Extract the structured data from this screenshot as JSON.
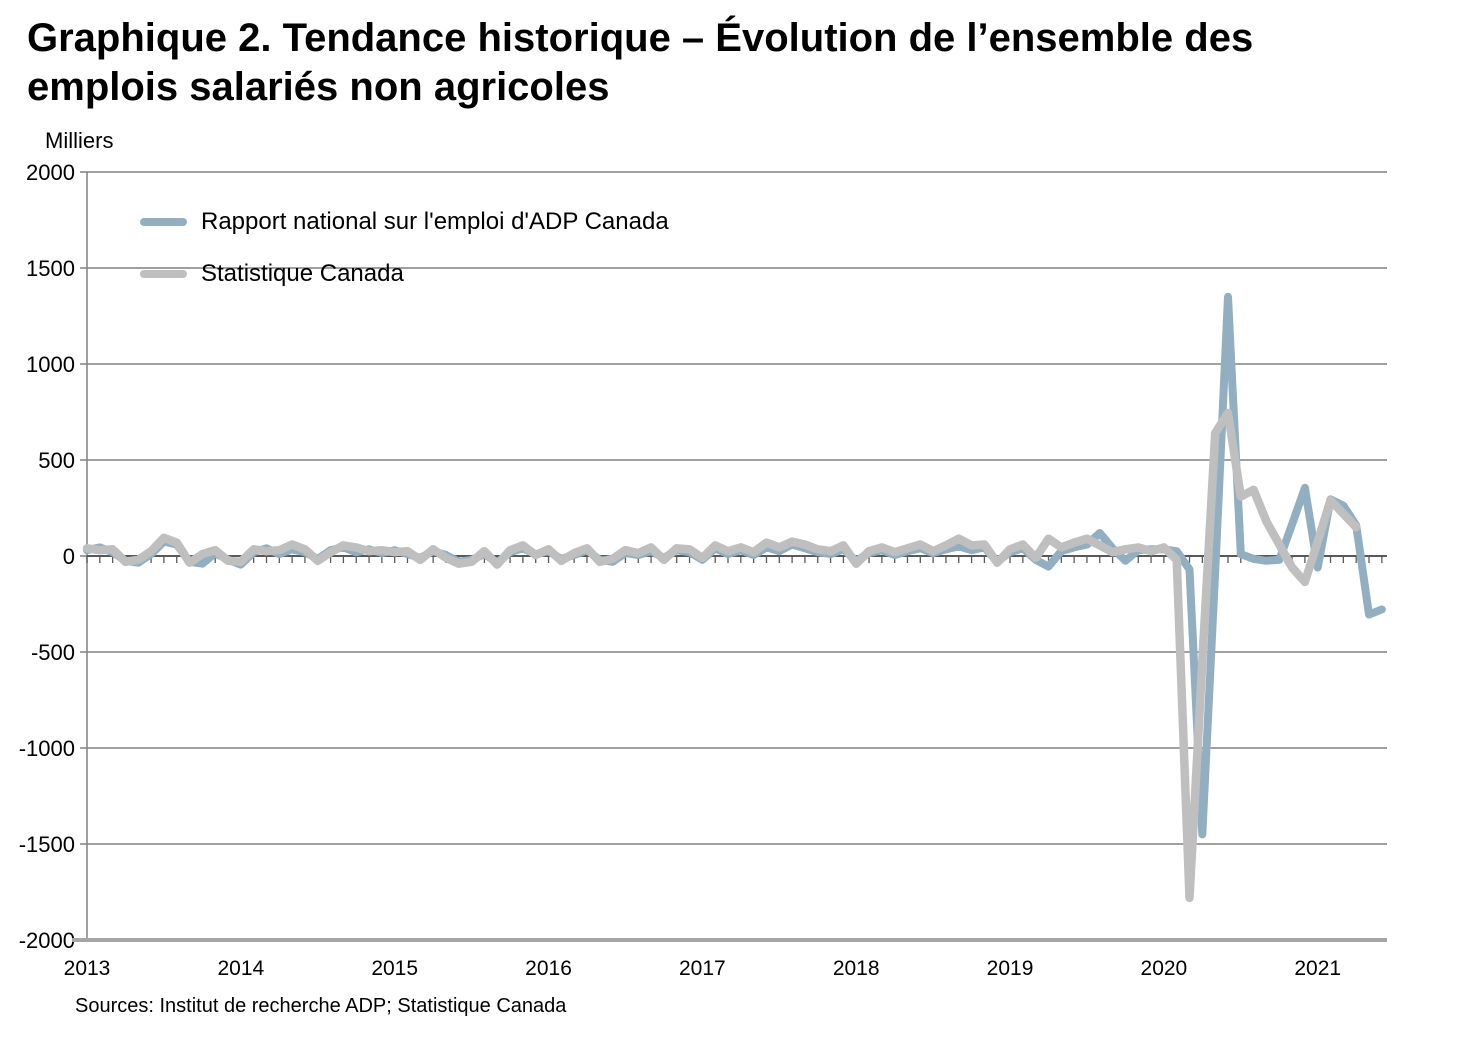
{
  "page": {
    "title": "Graphique 2. Tendance historique – Évolution de l’ensemble des emplois salariés non agricoles",
    "source_note": "Sources: Institut de recherche ADP; Statistique Canada"
  },
  "chart_data": {
    "type": "line",
    "title": "Graphique 2. Tendance historique – Évolution de l’ensemble des emplois salariés non agricoles",
    "ylabel": "Milliers",
    "ylim": [
      -2000,
      2000
    ],
    "y_ticks": [
      2000,
      1500,
      1000,
      500,
      0,
      -500,
      -1000,
      -1500,
      -2000
    ],
    "x_tick_labels": [
      "2013",
      "2014",
      "2015",
      "2016",
      "2017",
      "2018",
      "2019",
      "2020",
      "2021"
    ],
    "x_frequency": "monthly",
    "x_start": "2013-01",
    "grid": "horizontal",
    "legend_position": "inside-top-left",
    "axis_colors": {
      "gridline": "#808080",
      "zero_axis": "#595959",
      "bottom_rule": "#a6a6a6"
    },
    "series": [
      {
        "name": "Rapport national sur l'emploi d'ADP Canada",
        "color": "#92afc1",
        "end": "2021-06",
        "values": [
          30,
          45,
          20,
          -25,
          -35,
          10,
          75,
          60,
          -30,
          -40,
          15,
          -20,
          -45,
          20,
          40,
          10,
          35,
          20,
          -15,
          30,
          45,
          20,
          35,
          15,
          30,
          10,
          -10,
          25,
          5,
          -30,
          -20,
          10,
          -35,
          20,
          40,
          10,
          25,
          -15,
          5,
          30,
          -20,
          -30,
          15,
          5,
          25,
          -10,
          30,
          20,
          -20,
          40,
          10,
          30,
          5,
          45,
          25,
          60,
          40,
          20,
          10,
          35,
          -25,
          15,
          30,
          5,
          25,
          40,
          15,
          35,
          50,
          30,
          45,
          -30,
          20,
          40,
          -20,
          -55,
          25,
          45,
          60,
          120,
          40,
          -25,
          30,
          35,
          35,
          25,
          -70,
          -1450,
          -80,
          1350,
          10,
          -15,
          -25,
          -20,
          165,
          355,
          -60,
          295,
          262,
          160,
          -305,
          -278
        ]
      },
      {
        "name": "Statistique Canada",
        "color": "#bfbfbf",
        "end": "2021-04",
        "values": [
          40,
          30,
          35,
          -30,
          -20,
          25,
          95,
          70,
          -35,
          10,
          30,
          -25,
          -30,
          35,
          25,
          30,
          60,
          35,
          -25,
          20,
          55,
          45,
          25,
          30,
          20,
          25,
          -20,
          35,
          -10,
          -40,
          -30,
          25,
          -45,
          30,
          55,
          5,
          35,
          -25,
          15,
          40,
          -30,
          -15,
          30,
          15,
          45,
          -20,
          40,
          35,
          -10,
          55,
          25,
          45,
          20,
          70,
          45,
          75,
          60,
          35,
          25,
          55,
          -40,
          25,
          45,
          20,
          40,
          60,
          25,
          55,
          90,
          55,
          60,
          -35,
          35,
          60,
          -10,
          90,
          45,
          70,
          90,
          55,
          20,
          35,
          45,
          25,
          45,
          -20,
          -1780,
          -550,
          640,
          745,
          310,
          345,
          180,
          60,
          -60,
          -135,
          75,
          290,
          220,
          150
        ]
      }
    ]
  }
}
